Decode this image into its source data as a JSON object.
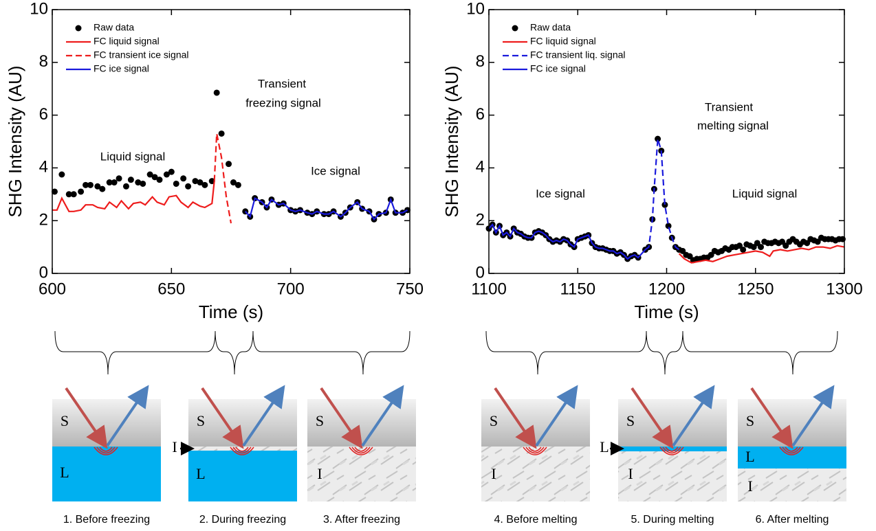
{
  "chart_data": [
    {
      "type": "line",
      "xlabel": "Time (s)",
      "ylabel": "SHG Intensity (AU)",
      "xlim": [
        600,
        750
      ],
      "xticks": [
        600,
        650,
        700,
        750
      ],
      "ylim": [
        0,
        10
      ],
      "yticks": [
        0,
        2,
        4,
        6,
        8,
        10
      ],
      "annotations": [
        [
          "Liquid signal"
        ],
        [
          "Transient",
          "freezing signal"
        ],
        [
          "Ice signal"
        ]
      ],
      "series": [
        {
          "name": "Raw data",
          "color": "#000000",
          "kind": "scatter",
          "dashed": false,
          "x": [
            601,
            604,
            607,
            609,
            612,
            614,
            616,
            619,
            621,
            624,
            626,
            628,
            631,
            633,
            636,
            638,
            641,
            643,
            645,
            648,
            650,
            652,
            655,
            657,
            660,
            662,
            664,
            667,
            669,
            671,
            674,
            676,
            678,
            681,
            683,
            685,
            688,
            690,
            692,
            695,
            697,
            700,
            702,
            704,
            707,
            709,
            711,
            714,
            716,
            718,
            721,
            723,
            725,
            728,
            730,
            733,
            735,
            737,
            740,
            742,
            744,
            747,
            749
          ],
          "values": [
            3.1,
            3.75,
            3.0,
            3.0,
            3.1,
            3.35,
            3.35,
            3.3,
            3.2,
            3.45,
            3.45,
            3.6,
            3.3,
            3.55,
            3.45,
            3.4,
            3.75,
            3.65,
            3.55,
            3.75,
            3.85,
            3.4,
            3.6,
            3.3,
            3.5,
            3.45,
            3.35,
            3.5,
            6.85,
            5.3,
            4.15,
            3.45,
            3.35,
            2.35,
            2.15,
            2.85,
            2.7,
            2.5,
            2.8,
            2.6,
            2.65,
            2.4,
            2.35,
            2.4,
            2.3,
            2.25,
            2.35,
            2.25,
            2.25,
            2.35,
            2.15,
            2.3,
            2.5,
            2.7,
            2.45,
            2.35,
            2.05,
            2.25,
            2.3,
            2.8,
            2.3,
            2.3,
            2.4
          ]
        },
        {
          "name": "FC liquid signal",
          "color": "#ee1c1c",
          "kind": "line",
          "dashed": false,
          "x": [
            600,
            602,
            604,
            607,
            609,
            612,
            614,
            617,
            619,
            622,
            624,
            627,
            629,
            632,
            634,
            637,
            639,
            642,
            644,
            647,
            649,
            652,
            654,
            657,
            659,
            662,
            664,
            667,
            668
          ],
          "values": [
            2.4,
            2.4,
            2.85,
            2.35,
            2.35,
            2.4,
            2.6,
            2.6,
            2.5,
            2.45,
            2.7,
            2.5,
            2.75,
            2.45,
            2.65,
            2.7,
            2.6,
            2.9,
            2.7,
            2.6,
            2.9,
            2.95,
            2.7,
            2.5,
            2.7,
            2.55,
            2.5,
            2.65,
            3.5
          ]
        },
        {
          "name": "FC transient ice signal",
          "color": "#ee1c1c",
          "kind": "line",
          "dashed": true,
          "x": [
            668,
            669,
            671,
            673,
            675
          ],
          "values": [
            3.5,
            5.3,
            4.4,
            2.9,
            1.9
          ]
        },
        {
          "name": "FC ice signal",
          "color": "#1a1adc",
          "kind": "line",
          "dashed": false,
          "x": [
            681,
            683,
            685,
            688,
            690,
            692,
            695,
            697,
            700,
            702,
            704,
            707,
            709,
            711,
            714,
            716,
            718,
            721,
            723,
            725,
            728,
            730,
            733,
            735,
            737,
            740,
            742,
            744,
            747,
            749
          ],
          "values": [
            2.35,
            2.15,
            2.85,
            2.7,
            2.5,
            2.8,
            2.6,
            2.65,
            2.4,
            2.35,
            2.4,
            2.3,
            2.25,
            2.35,
            2.25,
            2.25,
            2.35,
            2.15,
            2.3,
            2.5,
            2.7,
            2.45,
            2.35,
            2.05,
            2.25,
            2.3,
            2.8,
            2.3,
            2.3,
            2.4
          ]
        }
      ]
    },
    {
      "type": "line",
      "xlabel": "Time (s)",
      "ylabel": "SHG Intensity (AU)",
      "xlim": [
        1100,
        1300
      ],
      "xticks": [
        1100,
        1150,
        1200,
        1250,
        1300
      ],
      "ylim": [
        0,
        10
      ],
      "yticks": [
        0,
        2,
        4,
        6,
        8,
        10
      ],
      "annotations": [
        [
          "Ice signal"
        ],
        [
          "Transient",
          "melting signal"
        ],
        [
          "Liquid signal"
        ]
      ],
      "series": [
        {
          "name": "Raw data",
          "color": "#000000",
          "kind": "scatter",
          "dashed": false,
          "x": [
            1100,
            1102,
            1104,
            1106,
            1108,
            1110,
            1112,
            1114,
            1116,
            1118,
            1120,
            1122,
            1124,
            1126,
            1128,
            1130,
            1132,
            1134,
            1136,
            1138,
            1140,
            1142,
            1144,
            1146,
            1148,
            1150,
            1152,
            1154,
            1156,
            1158,
            1160,
            1162,
            1164,
            1166,
            1168,
            1170,
            1172,
            1174,
            1176,
            1178,
            1180,
            1182,
            1184,
            1188,
            1190,
            1192,
            1193,
            1195,
            1197,
            1199,
            1201,
            1203,
            1205,
            1207,
            1209,
            1211,
            1213,
            1215,
            1217,
            1219,
            1221,
            1223,
            1225,
            1227,
            1229,
            1231,
            1233,
            1235,
            1237,
            1239,
            1241,
            1243,
            1245,
            1247,
            1249,
            1251,
            1253,
            1255,
            1257,
            1259,
            1261,
            1263,
            1265,
            1267,
            1269,
            1271,
            1273,
            1275,
            1277,
            1279,
            1281,
            1283,
            1285,
            1287,
            1289,
            1291,
            1293,
            1295,
            1297,
            1299
          ],
          "values": [
            1.7,
            1.85,
            1.55,
            1.8,
            1.45,
            1.55,
            1.4,
            1.7,
            1.55,
            1.5,
            1.4,
            1.35,
            1.35,
            1.55,
            1.6,
            1.55,
            1.45,
            1.3,
            1.2,
            1.25,
            1.2,
            1.3,
            1.25,
            1.1,
            1.0,
            1.3,
            1.35,
            1.4,
            1.45,
            1.15,
            1.0,
            0.95,
            0.95,
            0.9,
            0.85,
            0.85,
            0.75,
            0.8,
            0.7,
            0.55,
            0.65,
            0.7,
            0.6,
            0.9,
            1.0,
            2.05,
            3.2,
            5.1,
            4.65,
            2.6,
            1.8,
            1.35,
            1.0,
            0.9,
            0.85,
            0.7,
            0.65,
            0.5,
            0.55,
            0.55,
            0.6,
            0.6,
            0.7,
            0.85,
            0.8,
            0.85,
            0.95,
            0.9,
            1.0,
            1.0,
            1.05,
            0.9,
            1.1,
            1.05,
            1.0,
            1.15,
            1.0,
            1.2,
            1.15,
            1.15,
            1.2,
            1.15,
            1.2,
            1.05,
            1.2,
            1.3,
            1.2,
            1.1,
            1.2,
            1.15,
            1.3,
            1.25,
            1.2,
            1.35,
            1.3,
            1.3,
            1.3,
            1.25,
            1.3,
            1.3
          ]
        },
        {
          "name": "FC liquid signal",
          "color": "#ee1c1c",
          "kind": "line",
          "dashed": false,
          "x": [
            1207,
            1210,
            1214,
            1218,
            1222,
            1226,
            1230,
            1234,
            1238,
            1242,
            1246,
            1250,
            1254,
            1258,
            1260,
            1264,
            1268,
            1272,
            1276,
            1280,
            1284,
            1288,
            1292,
            1296,
            1300
          ],
          "values": [
            0.75,
            0.55,
            0.4,
            0.45,
            0.5,
            0.45,
            0.55,
            0.65,
            0.7,
            0.75,
            0.8,
            0.85,
            0.8,
            0.65,
            0.85,
            0.9,
            0.85,
            0.9,
            0.95,
            0.9,
            1.0,
            1.0,
            0.95,
            1.05,
            1.0
          ]
        },
        {
          "name": "FC transient liq. signal",
          "color": "#1a1adc",
          "kind": "line",
          "dashed": true,
          "x": [
            1188,
            1190,
            1192,
            1193,
            1195,
            1197,
            1199,
            1201,
            1203,
            1205,
            1207
          ],
          "values": [
            0.9,
            1.0,
            2.05,
            3.2,
            5.1,
            4.65,
            2.6,
            1.8,
            1.35,
            1.0,
            0.9
          ]
        },
        {
          "name": "FC ice signal",
          "color": "#1a1adc",
          "kind": "line",
          "dashed": false,
          "x": [
            1100,
            1102,
            1104,
            1106,
            1108,
            1110,
            1112,
            1114,
            1116,
            1118,
            1120,
            1122,
            1124,
            1126,
            1128,
            1130,
            1132,
            1134,
            1136,
            1138,
            1140,
            1142,
            1144,
            1146,
            1148,
            1150,
            1152,
            1154,
            1156,
            1158,
            1160,
            1162,
            1164,
            1166,
            1168,
            1170,
            1172,
            1174,
            1176,
            1178,
            1180,
            1182,
            1184,
            1188
          ],
          "values": [
            1.7,
            1.85,
            1.55,
            1.8,
            1.45,
            1.55,
            1.4,
            1.7,
            1.55,
            1.5,
            1.4,
            1.35,
            1.35,
            1.55,
            1.6,
            1.55,
            1.45,
            1.3,
            1.2,
            1.25,
            1.2,
            1.3,
            1.25,
            1.1,
            1.0,
            1.3,
            1.35,
            1.4,
            1.45,
            1.15,
            1.0,
            0.95,
            0.95,
            0.9,
            0.85,
            0.85,
            0.75,
            0.8,
            0.7,
            0.55,
            0.65,
            0.7,
            0.6,
            0.9
          ]
        }
      ]
    }
  ],
  "panels": [
    {
      "caption": "1. Before freezing",
      "labels": [
        "S",
        "L"
      ]
    },
    {
      "caption": "2. During freezing",
      "labels": [
        "S",
        "I",
        "L"
      ]
    },
    {
      "caption": "3. After freezing",
      "labels": [
        "S",
        "I"
      ]
    },
    {
      "caption": "4. Before melting",
      "labels": [
        "S",
        "I"
      ]
    },
    {
      "caption": "5. During melting",
      "labels": [
        "S",
        "L",
        "I"
      ]
    },
    {
      "caption": "6. After melting",
      "labels": [
        "S",
        "L",
        "I"
      ]
    }
  ]
}
